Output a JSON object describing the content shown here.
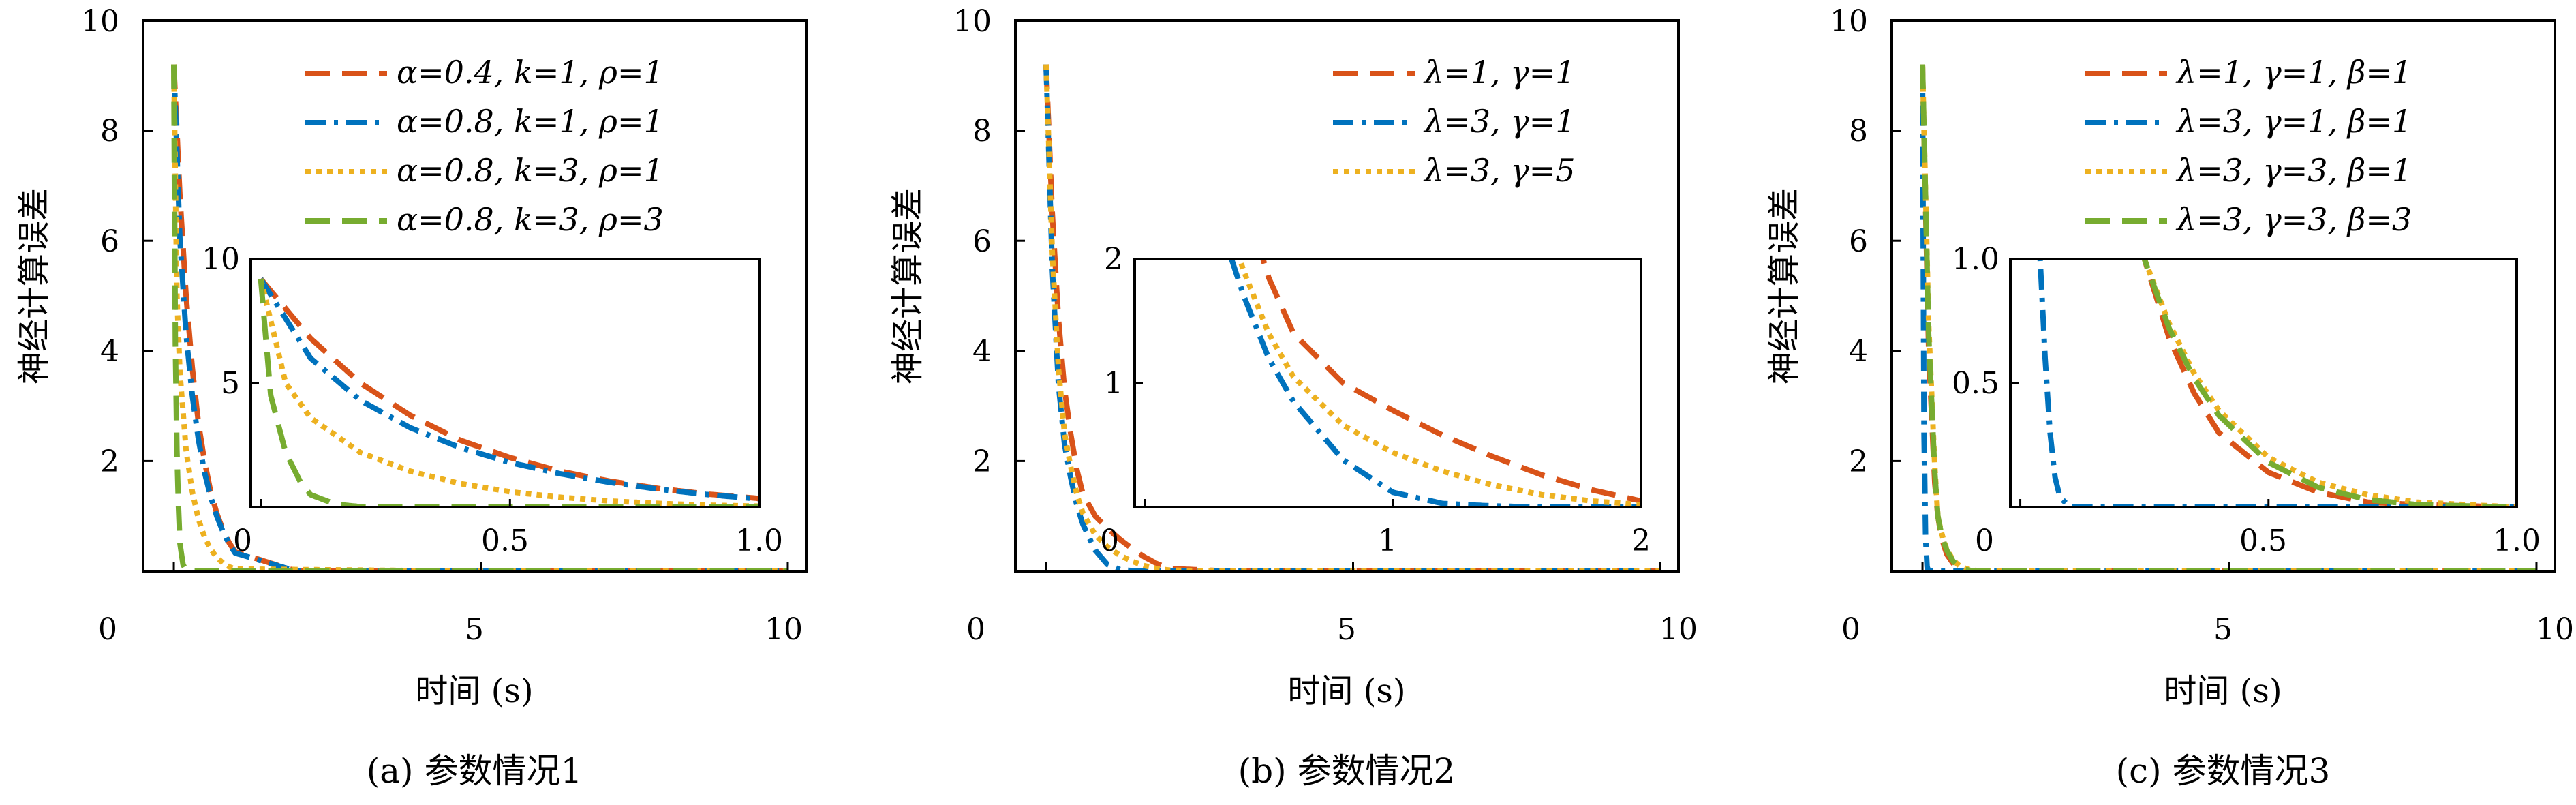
{
  "panels": [
    {
      "caption": "(a) 参数情况1",
      "ylabel": "神经计算误差",
      "xlabel": "时间 (s)",
      "xlim": [
        0,
        10
      ],
      "ylim": [
        0,
        10
      ],
      "xticks": [
        "0",
        "5",
        "10"
      ],
      "yticks": [
        "2",
        "4",
        "6",
        "8",
        "10"
      ],
      "legend": [
        "α=0.4, k=1, ρ=1",
        "α=0.8, k=1, ρ=1",
        "α=0.8, k=3, ρ=1",
        "α=0.8, k=3, ρ=3"
      ],
      "inset": {
        "xlim": [
          0,
          1.0
        ],
        "ylim": [
          0,
          10
        ],
        "xticks": [
          "0",
          "0.5",
          "1.0"
        ],
        "yticks": [
          "5",
          "10"
        ]
      }
    },
    {
      "caption": "(b) 参数情况2",
      "ylabel": "神经计算误差",
      "xlabel": "时间 (s)",
      "xlim": [
        0,
        10
      ],
      "ylim": [
        0,
        10
      ],
      "xticks": [
        "0",
        "5",
        "10"
      ],
      "yticks": [
        "2",
        "4",
        "6",
        "8",
        "10"
      ],
      "legend": [
        "λ=1, γ=1",
        "λ=3, γ=1",
        "λ=3, γ=5"
      ],
      "inset": {
        "xlim": [
          0,
          2
        ],
        "ylim": [
          0,
          2
        ],
        "xticks": [
          "0",
          "1",
          "2"
        ],
        "yticks": [
          "1",
          "2"
        ]
      }
    },
    {
      "caption": "(c) 参数情况3",
      "ylabel": "神经计算误差",
      "xlabel": "时间 (s)",
      "xlim": [
        0,
        10
      ],
      "ylim": [
        0,
        10
      ],
      "xticks": [
        "0",
        "5",
        "10"
      ],
      "yticks": [
        "2",
        "4",
        "6",
        "8",
        "10"
      ],
      "legend": [
        "λ=1, γ=1, β=1",
        "λ=3, γ=1, β=1",
        "λ=3, γ=3, β=1",
        "λ=3, γ=3, β=3"
      ],
      "inset": {
        "xlim": [
          0,
          1.0
        ],
        "ylim": [
          0,
          1.0
        ],
        "xticks": [
          "0",
          "0.5",
          "1.0"
        ],
        "yticks": [
          "0.5",
          "1.0"
        ]
      }
    }
  ],
  "chart_data": [
    {
      "type": "line",
      "xlabel": "时间 (s)",
      "ylabel": "神经计算误差",
      "xlim": [
        0,
        10
      ],
      "ylim": [
        0,
        10
      ],
      "series": [
        {
          "name": "α=0.4, k=1, ρ=1",
          "x": [
            0,
            0.1,
            0.2,
            0.3,
            0.4,
            0.5,
            0.6,
            0.7,
            0.8,
            0.9,
            1.0,
            2,
            5,
            10
          ],
          "y": [
            9.2,
            6.8,
            5.0,
            3.7,
            2.7,
            2.0,
            1.45,
            1.05,
            0.75,
            0.52,
            0.35,
            0,
            0,
            0
          ]
        },
        {
          "name": "α=0.8, k=1, ρ=1",
          "x": [
            0,
            0.1,
            0.2,
            0.3,
            0.4,
            0.5,
            0.6,
            0.7,
            0.8,
            0.9,
            1.0,
            2,
            5,
            10
          ],
          "y": [
            9.2,
            6.0,
            4.3,
            3.2,
            2.4,
            1.8,
            1.35,
            1.0,
            0.72,
            0.5,
            0.33,
            0,
            0,
            0
          ]
        },
        {
          "name": "α=0.8, k=3, ρ=1",
          "x": [
            0,
            0.05,
            0.1,
            0.2,
            0.3,
            0.4,
            0.5,
            0.6,
            0.7,
            0.8,
            0.9,
            1.0,
            5,
            10
          ],
          "y": [
            9.2,
            5.0,
            3.6,
            2.2,
            1.45,
            0.95,
            0.62,
            0.4,
            0.25,
            0.15,
            0.08,
            0.04,
            0,
            0
          ]
        },
        {
          "name": "α=0.8, k=3, ρ=3",
          "x": [
            0,
            0.02,
            0.05,
            0.08,
            0.1,
            0.15,
            0.2,
            0.3,
            0.5,
            1.0,
            5,
            10
          ],
          "y": [
            9.2,
            4.5,
            2.2,
            1.0,
            0.5,
            0.12,
            0.02,
            0,
            0,
            0,
            0,
            0
          ]
        }
      ]
    },
    {
      "type": "line",
      "xlabel": "时间 (s)",
      "ylabel": "神经计算误差",
      "xlim": [
        0,
        10
      ],
      "ylim": [
        0,
        10
      ],
      "series": [
        {
          "name": "λ=1, γ=1",
          "x": [
            0,
            0.1,
            0.2,
            0.3,
            0.4,
            0.5,
            0.6,
            0.8,
            1.0,
            1.2,
            1.4,
            1.6,
            1.8,
            2.0,
            3,
            5,
            10
          ],
          "y": [
            9.2,
            6.5,
            4.6,
            3.3,
            2.5,
            1.85,
            1.4,
            1.0,
            0.78,
            0.58,
            0.41,
            0.26,
            0.14,
            0.05,
            0,
            0,
            0
          ]
        },
        {
          "name": "λ=3, γ=1",
          "x": [
            0,
            0.1,
            0.2,
            0.3,
            0.4,
            0.5,
            0.6,
            0.8,
            1.0,
            1.2,
            1.4,
            1.6,
            2.0,
            3,
            5,
            10
          ],
          "y": [
            9.2,
            5.5,
            3.4,
            2.3,
            1.7,
            1.2,
            0.85,
            0.38,
            0.12,
            0.03,
            0.01,
            0,
            0,
            0,
            0,
            0
          ]
        },
        {
          "name": "λ=3, γ=5",
          "x": [
            0,
            0.1,
            0.2,
            0.3,
            0.4,
            0.5,
            0.6,
            0.8,
            1.0,
            1.2,
            1.4,
            1.6,
            1.8,
            2.0,
            3,
            5,
            10
          ],
          "y": [
            9.2,
            5.8,
            3.7,
            2.5,
            1.9,
            1.4,
            1.05,
            0.66,
            0.44,
            0.29,
            0.18,
            0.1,
            0.05,
            0.02,
            0,
            0,
            0
          ]
        }
      ]
    },
    {
      "type": "line",
      "xlabel": "时间 (s)",
      "ylabel": "神经计算误差",
      "xlim": [
        0,
        10
      ],
      "ylim": [
        0,
        10
      ],
      "series": [
        {
          "name": "λ=1, γ=1, β=1",
          "x": [
            0,
            0.1,
            0.2,
            0.25,
            0.3,
            0.35,
            0.4,
            0.5,
            0.6,
            0.7,
            0.8,
            1.0,
            2,
            5,
            10
          ],
          "y": [
            9.2,
            4.0,
            1.6,
            1.0,
            0.68,
            0.46,
            0.3,
            0.14,
            0.06,
            0.02,
            0.01,
            0,
            0,
            0,
            0
          ]
        },
        {
          "name": "λ=3, γ=1, β=1",
          "x": [
            0,
            0.02,
            0.04,
            0.05,
            0.06,
            0.07,
            0.08,
            0.1,
            0.5,
            1.0,
            5,
            10
          ],
          "y": [
            9.2,
            3.0,
            1.0,
            0.6,
            0.3,
            0.12,
            0.04,
            0,
            0,
            0,
            0,
            0
          ]
        },
        {
          "name": "λ=3, γ=3, β=1",
          "x": [
            0,
            0.1,
            0.2,
            0.25,
            0.3,
            0.35,
            0.4,
            0.5,
            0.6,
            0.7,
            0.8,
            0.9,
            1.0,
            2,
            5,
            10
          ],
          "y": [
            9.2,
            4.5,
            1.9,
            1.0,
            0.74,
            0.54,
            0.39,
            0.2,
            0.1,
            0.05,
            0.02,
            0.01,
            0,
            0,
            0,
            0
          ]
        },
        {
          "name": "λ=3, γ=3, β=3",
          "x": [
            0,
            0.1,
            0.2,
            0.25,
            0.3,
            0.35,
            0.4,
            0.5,
            0.6,
            0.7,
            0.8,
            1.0,
            2,
            5,
            10
          ],
          "y": [
            9.2,
            4.3,
            1.8,
            1.0,
            0.72,
            0.52,
            0.37,
            0.18,
            0.08,
            0.03,
            0.01,
            0,
            0,
            0,
            0
          ]
        }
      ]
    }
  ],
  "style": {
    "colors": [
      "#d95319",
      "#0072bd",
      "#edb120",
      "#77ac30"
    ],
    "dash": [
      "36,18",
      "30,12,6,12",
      "8,8",
      "36,18"
    ]
  }
}
